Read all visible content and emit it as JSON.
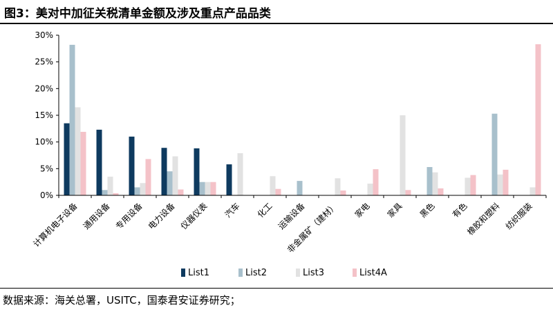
{
  "header": {
    "title": "图3：美对中加征关税清单金额及涉及重点产品品类"
  },
  "footer": {
    "source": "数据来源：海关总署，USITC，国泰君安证券研究；"
  },
  "colors": {
    "List1": "#0e3a5f",
    "List2": "#a8c0cc",
    "List3": "#e2e2e2",
    "List4A": "#f4c2c8"
  },
  "chart_data": {
    "type": "bar",
    "title": "",
    "xlabel": "",
    "ylabel": "",
    "ylim": [
      0,
      30
    ],
    "y_ticks": [
      "0%",
      "5%",
      "10%",
      "15%",
      "20%",
      "25%",
      "30%"
    ],
    "grid": false,
    "legend_position": "bottom",
    "categories": [
      "计算机电子设备",
      "通用设备",
      "专用设备",
      "电力设备",
      "仪器仪表",
      "汽车",
      "化工",
      "运输设备",
      "非金属矿（建材）",
      "家电",
      "家具",
      "黑色",
      "有色",
      "橡胶和塑料",
      "纺织服装"
    ],
    "series": [
      {
        "name": "List1",
        "values": [
          13.5,
          12.3,
          11.0,
          8.9,
          8.8,
          5.8,
          0,
          0,
          0,
          0,
          0,
          0,
          0,
          0,
          0
        ]
      },
      {
        "name": "List2",
        "values": [
          28.2,
          1.0,
          1.5,
          4.5,
          2.5,
          0,
          0,
          2.7,
          0,
          0,
          0,
          5.3,
          0,
          15.3,
          0
        ]
      },
      {
        "name": "List3",
        "values": [
          16.5,
          3.5,
          2.3,
          7.3,
          2.5,
          7.9,
          3.6,
          0,
          3.2,
          2.2,
          15.0,
          4.3,
          3.3,
          3.9,
          1.5
        ]
      },
      {
        "name": "List4A",
        "values": [
          11.9,
          0.4,
          6.8,
          1.1,
          2.5,
          0,
          1.2,
          0,
          0.9,
          4.9,
          1.0,
          1.3,
          3.8,
          4.8,
          28.3
        ]
      }
    ]
  }
}
